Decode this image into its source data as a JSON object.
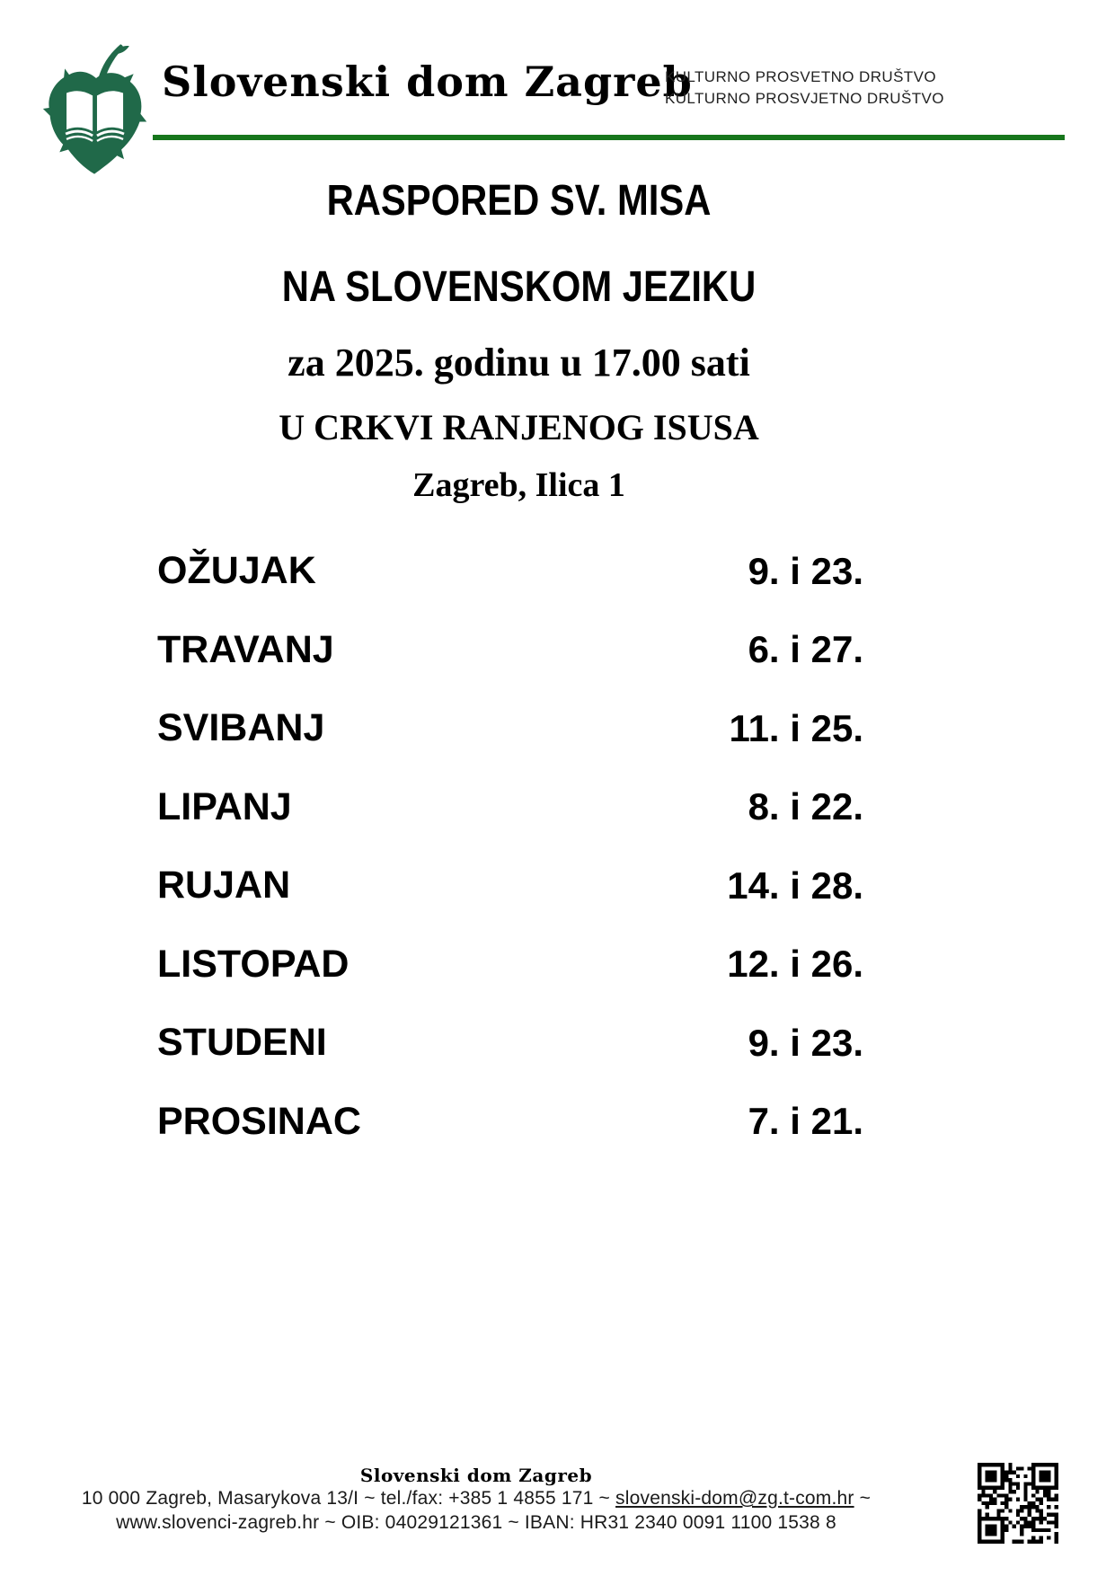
{
  "header": {
    "brand": "Slovenski dom Zagreb",
    "org_line_sl": "KULTURNO PROSVETNO DRUŠTVO",
    "org_line_hr": "KULTURNO PROSVJETNO DRUŠTVO",
    "logo_icon": "linden-leaf-open-book-logo",
    "colors": {
      "leaf_green": "#206949",
      "rule_green": "#17761c"
    }
  },
  "title": {
    "line1": "RASPORED SV. MISA",
    "line2": "NA SLOVENSKOM JEZIKU",
    "line3": "za 2025. godinu u 17.00 sati",
    "line4": "U CRKVI RANJENOG ISUSA",
    "line5": "Zagreb, Ilica 1"
  },
  "schedule": {
    "rows": [
      {
        "month": "OŽUJAK",
        "dates": "9. i 23."
      },
      {
        "month": "TRAVANJ",
        "dates": "6. i 27."
      },
      {
        "month": "SVIBANJ",
        "dates": "11. i 25."
      },
      {
        "month": "LIPANJ",
        "dates": "8. i 22."
      },
      {
        "month": "RUJAN",
        "dates": "14. i 28."
      },
      {
        "month": "LISTOPAD",
        "dates": "12. i 26."
      },
      {
        "month": "STUDENI",
        "dates": "9. i 23."
      },
      {
        "month": "PROSINAC",
        "dates": "7. i 21."
      }
    ]
  },
  "footer": {
    "org": "Slovenski dom Zagreb",
    "line1_prefix": "10 000 Zagreb, Masarykova 13/I ~ tel./fax: +385 1 4855 171 ~ ",
    "email": "slovenski-dom@zg.t-com.hr",
    "line1_suffix": " ~",
    "line2": "www.slovenci-zagreb.hr ~ OIB: 04029121361 ~ IBAN: HR31 2340 0091 1100 1538 8",
    "qr_icon": "qr-code"
  }
}
